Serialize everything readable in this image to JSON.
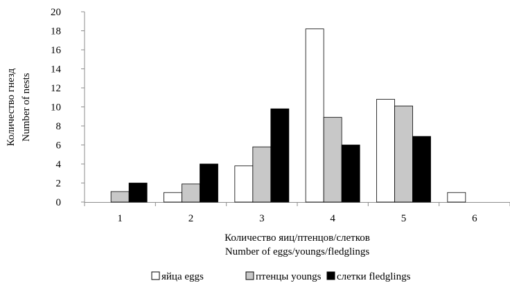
{
  "chart_data": {
    "type": "bar",
    "ylabel": "Количество гнезд",
    "ylabel2": "Number of nests",
    "xlabel": "Количество яиц/птенцов/слетков",
    "xlabel2": "Number of eggs/youngs/fledglings",
    "categories": [
      "1",
      "2",
      "3",
      "4",
      "5",
      "6"
    ],
    "yticks": [
      "0",
      "2",
      "4",
      "6",
      "8",
      "10",
      "12",
      "14",
      "16",
      "18",
      "20"
    ],
    "ylim": [
      0,
      20
    ],
    "grid": false,
    "legend_position": "bottom",
    "series": [
      {
        "name": "яйца eggs",
        "color": "#ffffff",
        "values": [
          0,
          1,
          3.8,
          18.2,
          10.8,
          1
        ]
      },
      {
        "name": "птенцы youngs",
        "color": "#c8c8c8",
        "values": [
          1.1,
          1.9,
          5.8,
          8.9,
          10.1,
          0
        ]
      },
      {
        "name": "слетки fledglings",
        "color": "#000000",
        "values": [
          2,
          4,
          9.8,
          6,
          6.9,
          0
        ]
      }
    ]
  }
}
